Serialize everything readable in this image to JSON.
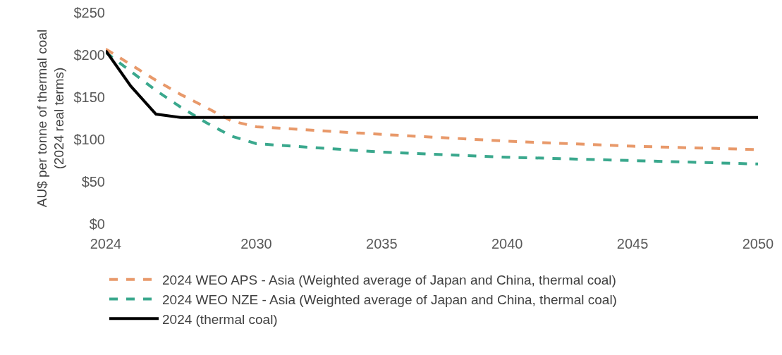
{
  "chart_data": {
    "type": "line",
    "ylabel": "AU$ per tonne of thermal coal\n(2024 real terms)",
    "xlim": [
      2024,
      2050
    ],
    "xticks": [
      2024,
      2030,
      2035,
      2040,
      2045,
      2050
    ],
    "ylim": [
      0,
      250
    ],
    "yticks": [
      {
        "value": 0,
        "label": "$0"
      },
      {
        "value": 50,
        "label": "$50"
      },
      {
        "value": 100,
        "label": "$100"
      },
      {
        "value": 150,
        "label": "$150"
      },
      {
        "value": 200,
        "label": "$200"
      },
      {
        "value": 250,
        "label": "$250"
      }
    ],
    "grid": false,
    "legend": "bottom",
    "marker": "none",
    "series": [
      {
        "name": "2024 WEO APS - Asia (Weighted average of Japan and China, thermal coal)",
        "color": "#e8996a",
        "line_style": "dashed",
        "x": [
          2024,
          2026,
          2027,
          2028,
          2029,
          2030,
          2035,
          2040,
          2045,
          2050
        ],
        "values": [
          207,
          170,
          153,
          138,
          122,
          115,
          106,
          98,
          92,
          88
        ]
      },
      {
        "name": "2024 WEO NZE - Asia (Weighted average of Japan and China, thermal coal)",
        "color": "#3aa88d",
        "line_style": "dashed",
        "x": [
          2024,
          2026,
          2027,
          2028,
          2029,
          2030,
          2035,
          2040,
          2045,
          2050
        ],
        "values": [
          203,
          158,
          138,
          120,
          104,
          95,
          85,
          79,
          75,
          71
        ]
      },
      {
        "name": "2024 (thermal coal)",
        "color": "#000000",
        "line_style": "solid",
        "x": [
          2024,
          2025,
          2026,
          2027,
          2028,
          2050
        ],
        "values": [
          205,
          163,
          130,
          126,
          126,
          126
        ]
      }
    ]
  }
}
